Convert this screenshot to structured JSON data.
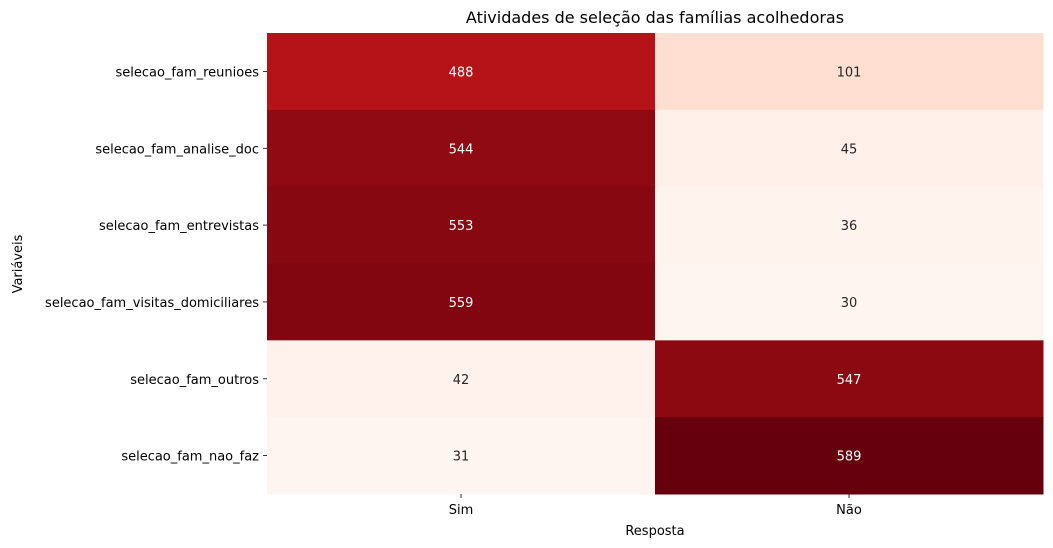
{
  "chart_data": {
    "type": "heatmap",
    "title": "Atividades de seleção das famílias acolhedoras",
    "xlabel": "Resposta",
    "ylabel": "Variáveis",
    "x_categories": [
      "Sim",
      "Não"
    ],
    "y_categories": [
      "selecao_fam_reunioes",
      "selecao_fam_analise_doc",
      "selecao_fam_entrevistas",
      "selecao_fam_visitas_domiciliares",
      "selecao_fam_outros",
      "selecao_fam_nao_faz"
    ],
    "values": [
      [
        488,
        101
      ],
      [
        544,
        45
      ],
      [
        553,
        36
      ],
      [
        559,
        30
      ],
      [
        42,
        547
      ],
      [
        31,
        589
      ]
    ],
    "colormap": "Reds",
    "vmin": 30,
    "vmax": 589,
    "colorbar": false,
    "annotations": true
  }
}
